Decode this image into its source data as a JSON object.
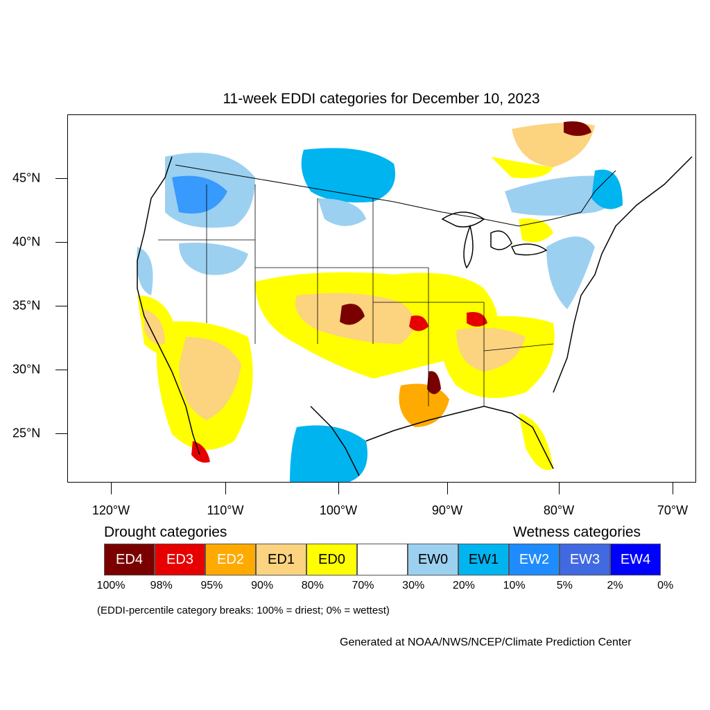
{
  "title": "11-week EDDI categories for December 10, 2023",
  "lat_labels": [
    "45°N",
    "40°N",
    "35°N",
    "30°N",
    "25°N"
  ],
  "lon_labels": [
    "120°W",
    "110°W",
    "100°W",
    "90°W",
    "80°W",
    "70°W"
  ],
  "legend": {
    "drought_heading": "Drought categories",
    "wetness_heading": "Wetness categories",
    "categories": [
      {
        "label": "ED4",
        "color": "#7a0000",
        "text_color": "#ffffff"
      },
      {
        "label": "ED3",
        "color": "#e60000",
        "text_color": "#ffffff"
      },
      {
        "label": "ED2",
        "color": "#ffaa00",
        "text_color": "#ffffff"
      },
      {
        "label": "ED1",
        "color": "#fcd37f",
        "text_color": "#000000"
      },
      {
        "label": "ED0",
        "color": "#ffff00",
        "text_color": "#000000"
      },
      {
        "label": "",
        "color": "#ffffff",
        "text_color": "#000000"
      },
      {
        "label": "EW0",
        "color": "#9cd0f0",
        "text_color": "#000000"
      },
      {
        "label": "EW1",
        "color": "#00b4f0",
        "text_color": "#000000"
      },
      {
        "label": "EW2",
        "color": "#1e8cff",
        "text_color": "#ffffff"
      },
      {
        "label": "EW3",
        "color": "#4169e1",
        "text_color": "#ffffff"
      },
      {
        "label": "EW4",
        "color": "#0000ff",
        "text_color": "#ffffff"
      }
    ],
    "percentiles": [
      "100%",
      "98%",
      "95%",
      "90%",
      "80%",
      "70%",
      "30%",
      "20%",
      "10%",
      "5%",
      "2%",
      "0%"
    ]
  },
  "note": "(EDDI-percentile category breaks: 100% = driest; 0% = wettest)",
  "credit": "Generated at NOAA/NWS/NCEP/Climate Prediction Center"
}
